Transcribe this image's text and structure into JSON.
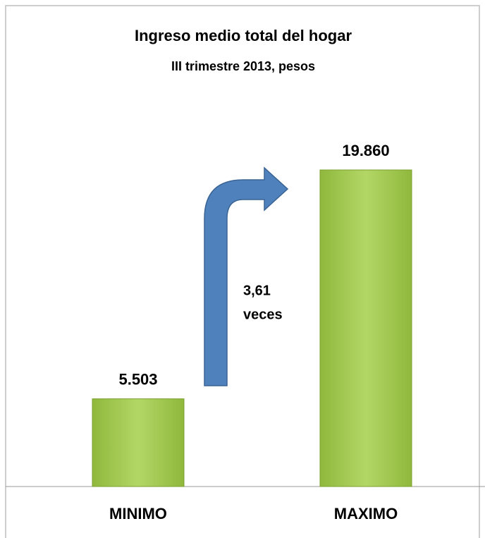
{
  "chart_data": {
    "type": "bar",
    "title": "Ingreso medio total del hogar",
    "subtitle": "III  trimestre 2013, pesos",
    "categories": [
      "MINIMO",
      "MAXIMO"
    ],
    "values": [
      5503,
      19860
    ],
    "value_labels": [
      "5.503",
      "19.860"
    ],
    "color": "#9bc447",
    "annotation": [
      "3,61",
      "veces"
    ]
  }
}
